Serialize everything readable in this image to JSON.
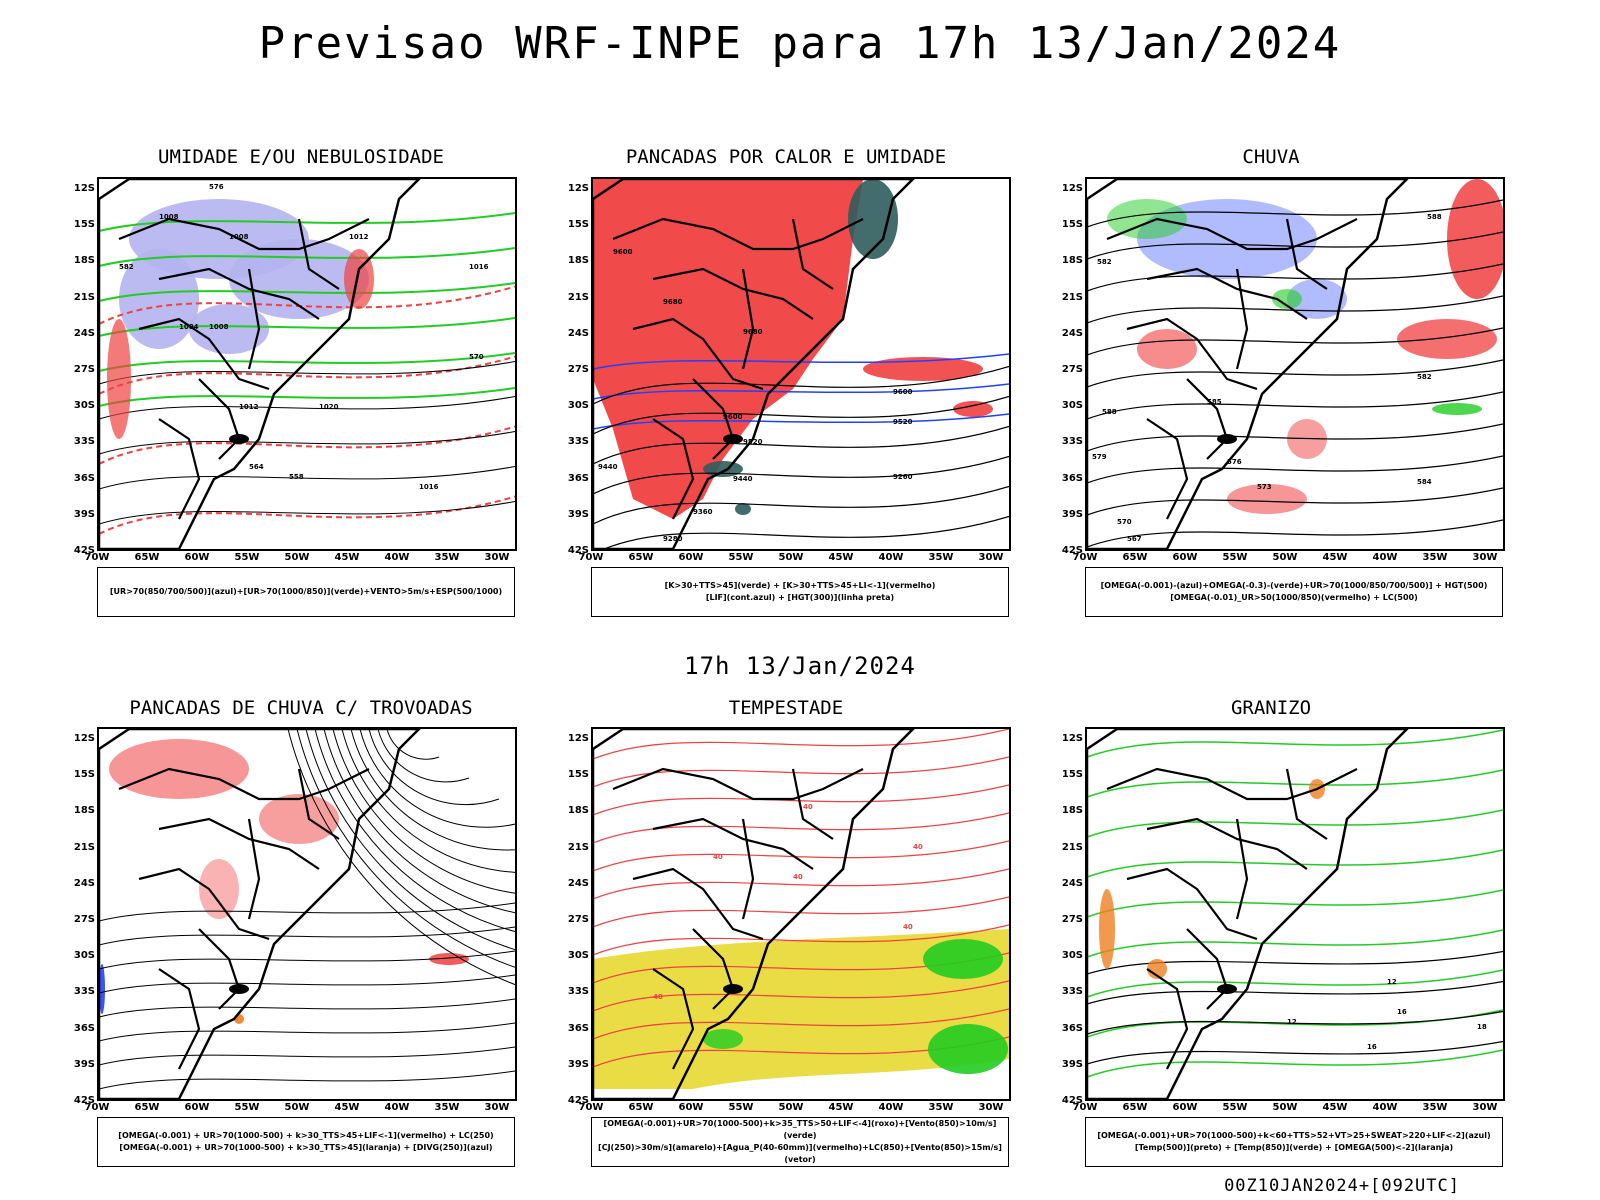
{
  "title": "Previsao WRF-INPE  para 17h 13/Jan/2024",
  "subtitle": "17h 13/Jan/2024",
  "footer": "00Z10JAN2024+[092UTC]",
  "lat_labels": [
    "12S",
    "15S",
    "18S",
    "21S",
    "24S",
    "27S",
    "30S",
    "33S",
    "36S",
    "39S",
    "42S"
  ],
  "lon_labels": [
    "70W",
    "65W",
    "60W",
    "55W",
    "50W",
    "45W",
    "40W",
    "35W",
    "30W"
  ],
  "panels": [
    {
      "title": "UMIDADE E/OU NEBULOSIDADE",
      "legend": [
        "[UR>70(850/700/500)](azul)+[UR>70(1000/850)](verde)+VENTO>5m/s+ESP(500/1000)"
      ]
    },
    {
      "title": "PANCADAS POR CALOR E UMIDADE",
      "legend": [
        "[K>30+TTS>45](verde) + [K>30+TTS>45+LI<-1](vermelho)",
        "[LIF](cont.azul) + [HGT(300)](linha preta)"
      ]
    },
    {
      "title": "CHUVA",
      "legend": [
        "[OMEGA(-0.001)-(azul)+OMEGA(-0.3)-(verde)+UR>70(1000/850/700/500)] + HGT(500)",
        "[OMEGA(-0.01)_UR>50(1000/850)(vermelho) + LC(500)"
      ]
    },
    {
      "title": "PANCADAS DE CHUVA C/ TROVOADAS",
      "legend": [
        "[OMEGA(-0.001) + UR>70(1000-500) + k>30_TTS>45+LIF<-1](vermelho) + LC(250)",
        "[OMEGA(-0.001) + UR>70(1000-500) + k>30_TTS>45](laranja) + [DIVG(250)](azul)"
      ]
    },
    {
      "title": "TEMPESTADE",
      "legend": [
        "[OMEGA(-0.001)+UR>70(1000-500)+k>35_TTS>50+LIF<-4](roxo)+[Vento(850)>10m/s](verde)",
        "[CJ(250)>30m/s](amarelo)+[Agua_P(40-60mm)](vermelho)+LC(850)+[Vento(850)>15m/s](vetor)"
      ]
    },
    {
      "title": "GRANIZO",
      "legend": [
        "[OMEGA(-0.001)+UR>70(1000-500)+k<60+TTS>52+VT>25+SWEAT>220+LIF<-2](azul)",
        "[Temp(500)](preto) + [Temp(850)](verde) + [OMEGA(500)<-2](laranja)"
      ]
    }
  ],
  "contour_labels": {
    "p1": [
      "1008",
      "1008",
      "1012",
      "1016",
      "1004",
      "1008",
      "1020",
      "1016",
      "576",
      "582",
      "570",
      "564",
      "558",
      "1012"
    ],
    "p2": [
      "9600",
      "9680",
      "9680",
      "9600",
      "9520",
      "9520",
      "9440",
      "9440",
      "9360",
      "9280",
      "9600",
      "9260"
    ],
    "p3": [
      "582",
      "588",
      "579",
      "576",
      "573",
      "570",
      "567",
      "582",
      "588",
      "585",
      "584"
    ],
    "p5": [
      "40",
      "40",
      "40",
      "40",
      "40",
      "40"
    ],
    "p6": [
      "12",
      "16",
      "18",
      "16",
      "12"
    ]
  },
  "colors": {
    "blue_shade": "#b4b4f0",
    "green": "#22cc22",
    "red": "#f04040",
    "dark_teal": "#2f5c5c",
    "yellow": "#e8d830",
    "blue": "#2040ff",
    "orange": "#f08020"
  }
}
